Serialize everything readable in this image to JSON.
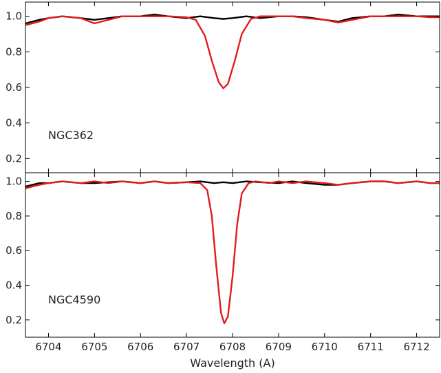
{
  "chart_data": {
    "type": "line",
    "xlabel": "Wavelength (A)",
    "xlim": [
      6703.5,
      6712.5
    ],
    "x_ticks": [
      6704,
      6705,
      6706,
      6707,
      6708,
      6709,
      6710,
      6711,
      6712
    ],
    "x_tick_labels": [
      "6704",
      "6705",
      "6706",
      "6707",
      "6708",
      "6709",
      "6710",
      "6711",
      "6712"
    ],
    "grid": false,
    "legend": "none",
    "panels": [
      {
        "label": "NGC362",
        "ylim": [
          0.12,
          1.08
        ],
        "y_ticks": [
          0.2,
          0.4,
          0.6,
          0.8,
          1.0
        ],
        "y_tick_labels": [
          "0.2",
          "0.4",
          "0.6",
          "0.8",
          "1.0"
        ],
        "series": [
          {
            "color": "#000000",
            "x": [
              6703.5,
              6703.8,
              6704.0,
              6704.3,
              6704.7,
              6705.0,
              6705.3,
              6705.6,
              6706.0,
              6706.3,
              6706.6,
              6707.0,
              6707.3,
              6707.6,
              6707.8,
              6708.0,
              6708.3,
              6708.6,
              6709.0,
              6709.3,
              6709.6,
              6710.0,
              6710.3,
              6710.6,
              6711.0,
              6711.3,
              6711.6,
              6712.0,
              6712.3,
              6712.5
            ],
            "y": [
              0.96,
              0.98,
              0.99,
              1.0,
              0.99,
              0.98,
              0.99,
              1.0,
              1.0,
              1.01,
              1.0,
              0.99,
              1.0,
              0.99,
              0.985,
              0.99,
              1.0,
              0.99,
              1.0,
              1.0,
              0.995,
              0.98,
              0.97,
              0.99,
              1.0,
              1.0,
              1.01,
              1.0,
              1.0,
              1.0
            ]
          },
          {
            "color": "#e31a1c",
            "x": [
              6703.5,
              6703.8,
              6704.0,
              6704.3,
              6704.7,
              6705.0,
              6705.3,
              6705.6,
              6706.0,
              6706.3,
              6706.6,
              6707.0,
              6707.2,
              6707.4,
              6707.55,
              6707.7,
              6707.8,
              6707.9,
              6708.05,
              6708.2,
              6708.4,
              6708.6,
              6709.0,
              6709.3,
              6709.6,
              6710.0,
              6710.3,
              6710.6,
              6711.0,
              6711.3,
              6711.6,
              6712.0,
              6712.3,
              6712.5
            ],
            "y": [
              0.95,
              0.97,
              0.99,
              1.0,
              0.99,
              0.96,
              0.98,
              1.0,
              1.0,
              1.0,
              1.0,
              0.995,
              0.98,
              0.89,
              0.75,
              0.63,
              0.595,
              0.62,
              0.75,
              0.9,
              0.985,
              1.0,
              1.0,
              1.0,
              0.99,
              0.98,
              0.965,
              0.98,
              1.0,
              1.0,
              1.0,
              1.0,
              0.995,
              0.995
            ]
          }
        ]
      },
      {
        "label": "NGC4590",
        "ylim": [
          0.1,
          1.05
        ],
        "y_ticks": [
          0.2,
          0.4,
          0.6,
          0.8,
          1.0
        ],
        "y_tick_labels": [
          "0.2",
          "0.4",
          "0.6",
          "0.8",
          "1.0"
        ],
        "series": [
          {
            "color": "#000000",
            "x": [
              6703.5,
              6703.8,
              6704.0,
              6704.3,
              6704.7,
              6705.0,
              6705.3,
              6705.6,
              6706.0,
              6706.3,
              6706.6,
              6707.0,
              6707.3,
              6707.6,
              6707.8,
              6708.0,
              6708.3,
              6708.6,
              6709.0,
              6709.3,
              6709.6,
              6710.0,
              6710.3,
              6710.6,
              6711.0,
              6711.3,
              6711.6,
              6712.0,
              6712.3,
              6712.5
            ],
            "y": [
              0.97,
              0.99,
              0.99,
              1.0,
              0.99,
              0.99,
              0.995,
              1.0,
              0.99,
              1.0,
              0.99,
              0.995,
              1.0,
              0.99,
              0.995,
              0.99,
              1.0,
              0.995,
              0.99,
              1.0,
              0.99,
              0.98,
              0.98,
              0.99,
              1.0,
              1.0,
              0.99,
              1.0,
              0.99,
              0.99
            ]
          },
          {
            "color": "#e31a1c",
            "x": [
              6703.5,
              6703.8,
              6704.0,
              6704.3,
              6704.7,
              6705.0,
              6705.3,
              6705.6,
              6706.0,
              6706.3,
              6706.6,
              6707.0,
              6707.3,
              6707.45,
              6707.55,
              6707.65,
              6707.75,
              6707.82,
              6707.9,
              6708.0,
              6708.1,
              6708.2,
              6708.35,
              6708.5,
              6708.8,
              6709.0,
              6709.3,
              6709.6,
              6710.0,
              6710.3,
              6710.6,
              6711.0,
              6711.3,
              6711.6,
              6712.0,
              6712.3,
              6712.5
            ],
            "y": [
              0.96,
              0.98,
              0.99,
              1.0,
              0.99,
              1.0,
              0.99,
              1.0,
              0.99,
              1.0,
              0.99,
              0.995,
              0.99,
              0.95,
              0.8,
              0.5,
              0.24,
              0.18,
              0.22,
              0.45,
              0.75,
              0.93,
              0.99,
              1.0,
              0.99,
              1.0,
              0.99,
              1.0,
              0.99,
              0.98,
              0.99,
              1.0,
              1.0,
              0.99,
              1.0,
              0.99,
              0.99
            ]
          }
        ]
      }
    ]
  }
}
